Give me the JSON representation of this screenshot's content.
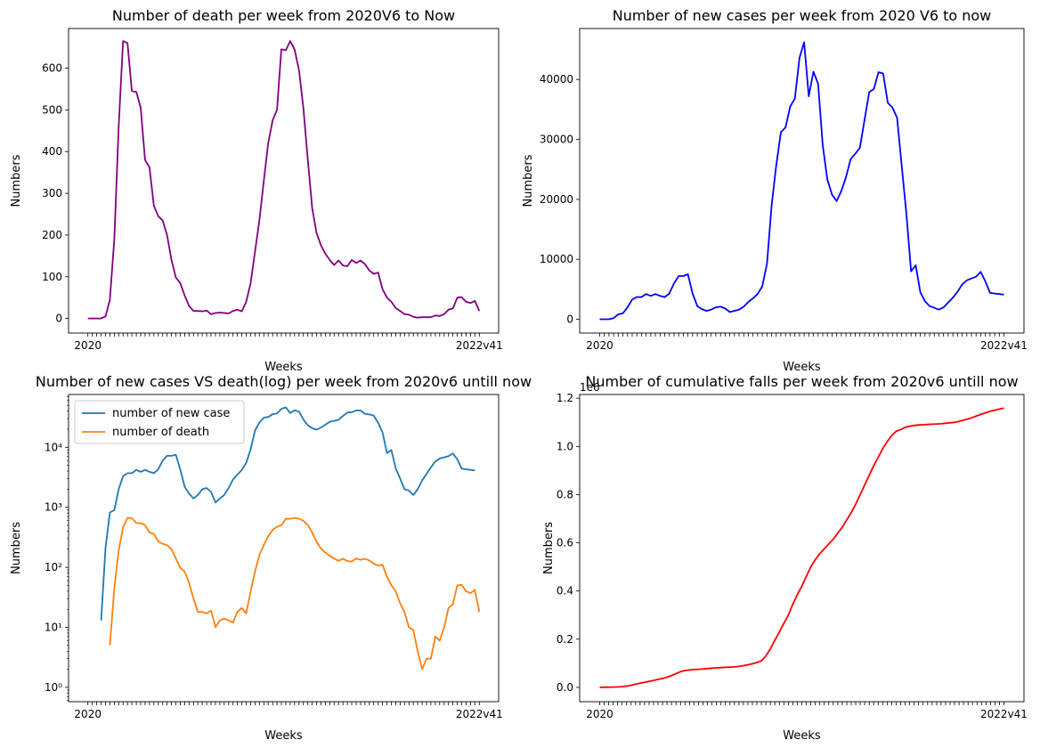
{
  "figure": {
    "background": "#ffffff"
  },
  "chart_data": [
    {
      "id": "deaths",
      "type": "line",
      "title": "Number of death per week from 2020V6 to Now",
      "xlabel": "Weeks",
      "ylabel": "Numbers",
      "yscale": "linear",
      "ylim": [
        -35,
        695
      ],
      "yticks": [
        0,
        100,
        200,
        300,
        400,
        500,
        600
      ],
      "ytick_labels": [
        "0",
        "100",
        "200",
        "300",
        "400",
        "500",
        "600"
      ],
      "xtick_start_label": "2020",
      "xtick_end_label": "2022v41",
      "series": [
        {
          "color": "#800080",
          "values": [
            0,
            0,
            0,
            0,
            5,
            45,
            190,
            460,
            665,
            660,
            545,
            543,
            505,
            380,
            362,
            270,
            245,
            235,
            200,
            140,
            98,
            85,
            55,
            30,
            18,
            18,
            17,
            19,
            10,
            13,
            14,
            13,
            12,
            18,
            21,
            17,
            40,
            85,
            160,
            235,
            330,
            420,
            475,
            500,
            645,
            643,
            665,
            645,
            595,
            505,
            380,
            265,
            205,
            175,
            155,
            140,
            128,
            139,
            127,
            125,
            140,
            133,
            139,
            130,
            115,
            107,
            110,
            70,
            50,
            40,
            25,
            18,
            10,
            9,
            4,
            2,
            3,
            3,
            3,
            7,
            6,
            10,
            21,
            24,
            50,
            51,
            40,
            37,
            42,
            18
          ]
        }
      ]
    },
    {
      "id": "cases",
      "type": "line",
      "title": "Number of new cases per week from 2020 V6 to now",
      "xlabel": "Weeks",
      "ylabel": "Numbers",
      "yscale": "linear",
      "ylim": [
        -2300,
        48500
      ],
      "yticks": [
        0,
        10000,
        20000,
        30000,
        40000
      ],
      "ytick_labels": [
        "0",
        "10000",
        "20000",
        "30000",
        "40000"
      ],
      "xtick_start_label": "2020",
      "xtick_end_label": "2022v41",
      "series": [
        {
          "color": "#0000ff",
          "values": [
            0,
            0,
            0,
            200,
            800,
            1000,
            2000,
            3300,
            3700,
            3700,
            4200,
            3900,
            4200,
            3900,
            3700,
            4300,
            6000,
            7200,
            7200,
            7500,
            4300,
            2200,
            1700,
            1400,
            1600,
            2000,
            2100,
            1800,
            1200,
            1400,
            1600,
            2100,
            2900,
            3500,
            4200,
            5500,
            9300,
            19000,
            25700,
            31200,
            32000,
            35500,
            36800,
            43600,
            46200,
            37200,
            41300,
            39300,
            29000,
            23300,
            20800,
            19700,
            21400,
            23700,
            26700,
            27600,
            28600,
            33300,
            37900,
            38400,
            41200,
            41000,
            36100,
            35300,
            33600,
            25600,
            17700,
            8000,
            9000,
            4500,
            3000,
            2200,
            1900,
            1600,
            2000,
            2800,
            3600,
            4600,
            5800,
            6500,
            6800,
            7100,
            7900,
            6300,
            4400,
            4300,
            4200,
            4100
          ]
        }
      ]
    },
    {
      "id": "cases-vs-death-log",
      "type": "line",
      "title": "Number of new cases VS death(log) per week from 2020v6 untill now",
      "xlabel": "Weeks",
      "ylabel": "Numbers",
      "yscale": "log",
      "ylim_log10": [
        -0.24,
        4.88
      ],
      "yticks": [
        1,
        10,
        100,
        1000,
        10000
      ],
      "ytick_labels": [
        "10⁰",
        "10¹",
        "10²",
        "10³",
        "10⁴"
      ],
      "legend_position": "upper-left",
      "xtick_start_label": "2020",
      "xtick_end_label": "2022v41",
      "series": [
        {
          "name": "number of new case",
          "color": "#1f77b4",
          "values": [
            1,
            0,
            0,
            13,
            210,
            820,
            900,
            2000,
            3300,
            3700,
            3700,
            4200,
            3900,
            4200,
            3900,
            3700,
            4300,
            6000,
            7200,
            7200,
            7500,
            4300,
            2200,
            1700,
            1400,
            1600,
            2000,
            2100,
            1800,
            1200,
            1400,
            1600,
            2100,
            2900,
            3500,
            4200,
            5500,
            9300,
            19000,
            25700,
            31200,
            32000,
            35500,
            36800,
            43600,
            46200,
            37200,
            41300,
            39300,
            29000,
            23300,
            20800,
            19700,
            21400,
            23700,
            26700,
            27600,
            28600,
            33300,
            37900,
            38400,
            41200,
            41000,
            36100,
            35300,
            33600,
            25600,
            17700,
            8000,
            9000,
            4500,
            3000,
            2000,
            1900,
            1600,
            2000,
            2800,
            3600,
            4600,
            5800,
            6500,
            6800,
            7100,
            7900,
            6300,
            4400,
            4300,
            4200,
            4100
          ]
        },
        {
          "name": "number of death",
          "color": "#ff7f0e",
          "values": [
            0,
            0,
            0,
            0,
            0,
            5,
            45,
            190,
            460,
            665,
            660,
            545,
            543,
            505,
            380,
            362,
            270,
            245,
            235,
            200,
            140,
            98,
            85,
            55,
            30,
            18,
            18,
            17,
            19,
            10,
            13,
            14,
            13,
            12,
            18,
            21,
            17,
            40,
            85,
            160,
            235,
            330,
            420,
            475,
            500,
            645,
            643,
            665,
            645,
            595,
            505,
            380,
            265,
            205,
            175,
            155,
            140,
            128,
            139,
            127,
            125,
            140,
            133,
            139,
            130,
            115,
            107,
            110,
            70,
            50,
            40,
            25,
            18,
            10,
            9,
            4,
            2,
            3,
            3,
            7,
            6,
            10,
            21,
            24,
            50,
            51,
            40,
            37,
            42,
            18
          ]
        }
      ]
    },
    {
      "id": "cumulative",
      "type": "line",
      "title": "Number of cumulative falls per week from 2020v6 untill now",
      "xlabel": "Weeks",
      "ylabel": "Numbers",
      "yscale": "linear",
      "scale_label": "1e6",
      "ylim": [
        -0.0595,
        1.2155
      ],
      "yticks": [
        0.0,
        0.2,
        0.4,
        0.6,
        0.8,
        1.0,
        1.2
      ],
      "ytick_labels": [
        "0.0",
        "0.2",
        "0.4",
        "0.6",
        "0.8",
        "1.0",
        "1.2"
      ],
      "xtick_start_label": "2020",
      "xtick_end_label": "2022v41",
      "series": [
        {
          "color": "#ff0000",
          "values": [
            0,
            0.0002,
            0.0006,
            0.0012,
            0.002,
            0.003,
            0.005,
            0.009,
            0.013,
            0.017,
            0.021,
            0.025,
            0.029,
            0.033,
            0.037,
            0.042,
            0.049,
            0.057,
            0.065,
            0.07,
            0.072,
            0.074,
            0.075,
            0.076,
            0.078,
            0.08,
            0.081,
            0.082,
            0.083,
            0.084,
            0.085,
            0.087,
            0.09,
            0.094,
            0.098,
            0.103,
            0.11,
            0.13,
            0.16,
            0.195,
            0.23,
            0.265,
            0.3,
            0.345,
            0.385,
            0.42,
            0.46,
            0.5,
            0.53,
            0.555,
            0.575,
            0.595,
            0.615,
            0.64,
            0.665,
            0.695,
            0.725,
            0.76,
            0.8,
            0.84,
            0.88,
            0.92,
            0.955,
            0.99,
            1.02,
            1.045,
            1.063,
            1.07,
            1.079,
            1.084,
            1.087,
            1.089,
            1.09,
            1.091,
            1.092,
            1.093,
            1.094,
            1.096,
            1.098,
            1.1,
            1.104,
            1.109,
            1.114,
            1.12,
            1.127,
            1.134,
            1.14,
            1.146,
            1.151,
            1.155,
            1.159
          ]
        }
      ]
    }
  ]
}
